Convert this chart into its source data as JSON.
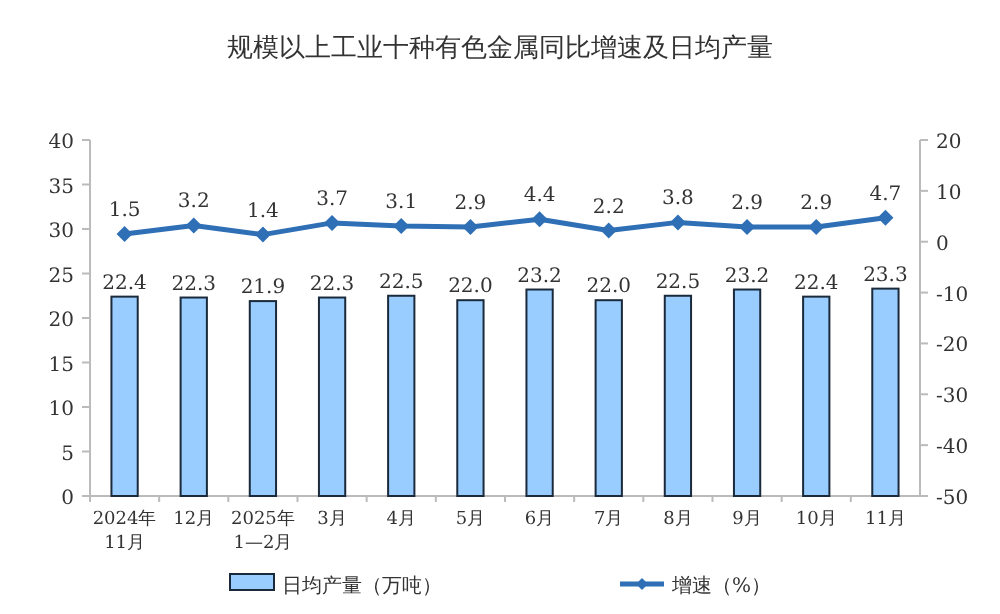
{
  "chart_data": {
    "type": "bar",
    "title": "规模以上工业十种有色金属同比增速及日均产量",
    "categories": [
      "2024年\n11月",
      "12月",
      "2025年\n1—2月",
      "3月",
      "4月",
      "5月",
      "6月",
      "7月",
      "8月",
      "9月",
      "10月",
      "11月"
    ],
    "series": [
      {
        "name": "日均产量（万吨）",
        "color": "#99ccff",
        "values": [
          22.4,
          22.3,
          21.9,
          22.3,
          22.5,
          22.0,
          23.2,
          22.0,
          22.5,
          23.2,
          22.4,
          23.3
        ],
        "value_labels": [
          "22.4",
          "22.3",
          "21.9",
          "22.3",
          "22.5",
          "22.0",
          "23.2",
          "22.0",
          "22.5",
          "23.2",
          "22.4",
          "23.3"
        ]
      },
      {
        "name": "增速（%）",
        "type": "line",
        "axis": "y2",
        "color": "#2e6fb5",
        "marker": "diamond",
        "values": [
          1.5,
          3.2,
          1.4,
          3.7,
          3.1,
          2.9,
          4.4,
          2.2,
          3.8,
          2.9,
          2.9,
          4.7
        ]
      }
    ],
    "ylim": [
      0,
      40
    ],
    "yticks": [
      0,
      5,
      10,
      15,
      20,
      25,
      30,
      35,
      40
    ],
    "y2lim": [
      -50,
      20
    ],
    "y2ticks": [
      -50,
      -40,
      -30,
      -20,
      -10,
      0,
      10,
      20
    ],
    "data_labels": true,
    "legend": "bottom",
    "grid": false
  }
}
